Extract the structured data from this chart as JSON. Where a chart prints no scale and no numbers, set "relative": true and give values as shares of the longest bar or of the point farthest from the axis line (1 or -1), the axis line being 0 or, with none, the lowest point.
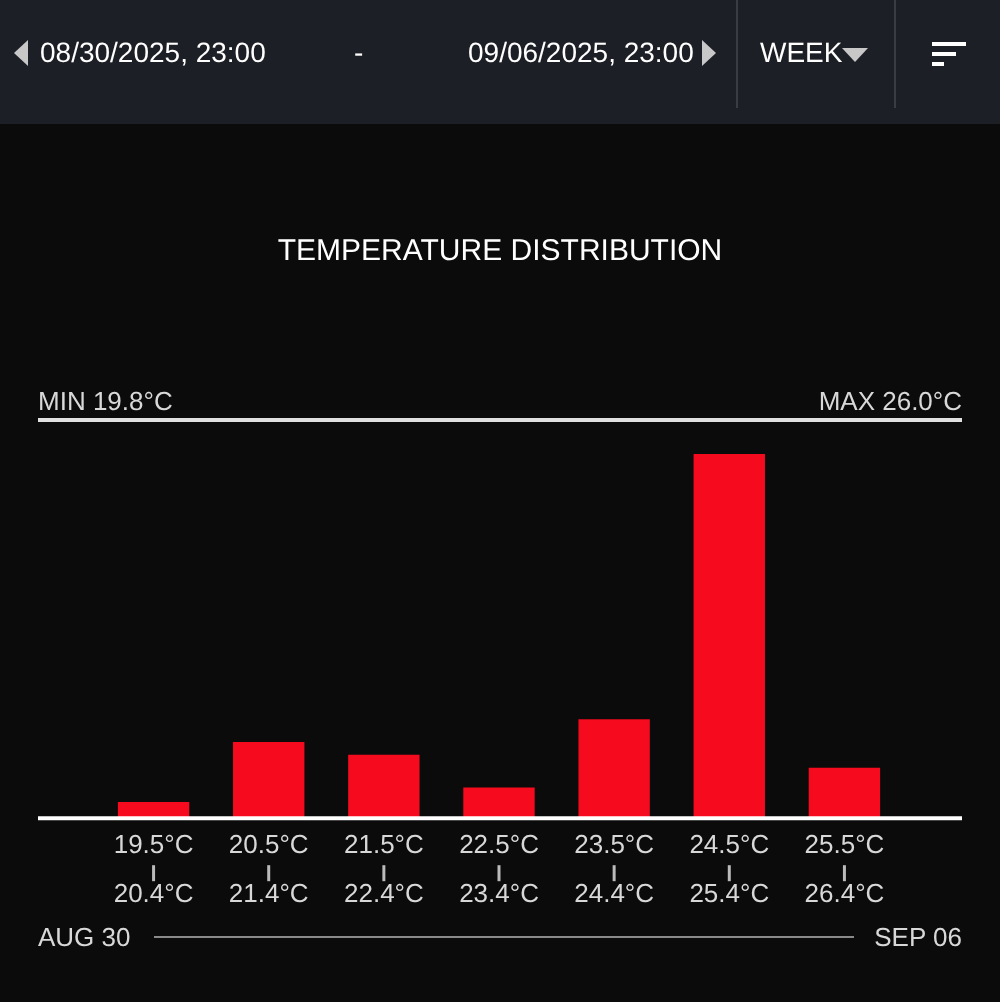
{
  "chart_data": {
    "type": "bar",
    "title": "TEMPERATURE DISTRIBUTION",
    "relative": true,
    "categories": [
      "19.5°C\n20.4°C",
      "20.5°C\n21.4°C",
      "21.5°C\n22.4°C",
      "22.5°C\n23.4°C",
      "23.5°C\n24.4°C",
      "24.5°C\n25.4°C",
      "25.5°C\n26.4°C"
    ],
    "values": [
      0.042,
      0.207,
      0.172,
      0.082,
      0.27,
      1,
      0.136
    ],
    "color": "#f50a1e",
    "annotations": [
      "08/30/2025, 23:00",
      "-",
      "09/06/2025, 23:00",
      "WEEK",
      "MIN 19.8°C",
      "MAX 26.0°C",
      "AUG 30",
      "SEP 06"
    ],
    "legend": false
  }
}
